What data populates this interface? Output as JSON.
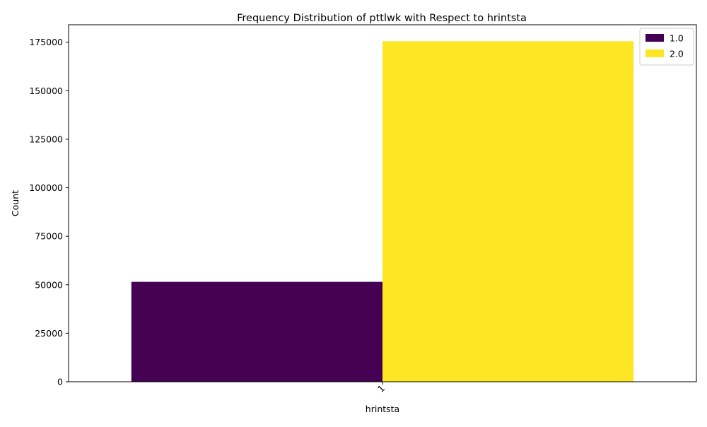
{
  "chart_data": {
    "type": "bar",
    "title": "Frequency Distribution of pttlwk with Respect to hrintsta",
    "xlabel": "hrintsta",
    "ylabel": "Count",
    "categories": [
      "1"
    ],
    "series": [
      {
        "name": "1.0",
        "values": [
          51500
        ],
        "color": "#440154"
      },
      {
        "name": "2.0",
        "values": [
          175500
        ],
        "color": "#fde725"
      }
    ],
    "ylim": [
      0,
      184000
    ],
    "yticks": [
      0,
      25000,
      50000,
      75000,
      100000,
      125000,
      150000,
      175000
    ],
    "legend": "top-right",
    "grid": false
  }
}
